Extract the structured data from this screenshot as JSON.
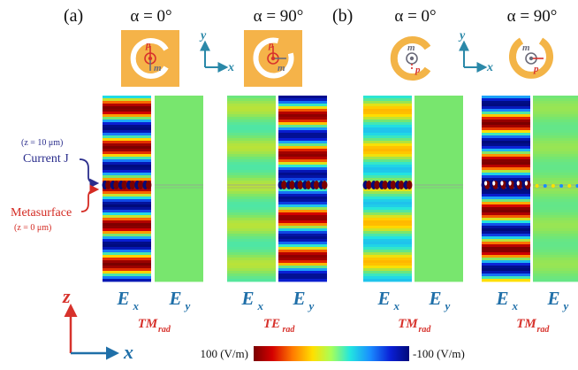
{
  "panels": [
    {
      "tag": "(a)",
      "columns": [
        {
          "alpha": "α = 0°",
          "unit": "c-open-right",
          "fields": [
            {
              "c": "E",
              "s": "x",
              "pat": "ex-a0"
            },
            {
              "c": "E",
              "s": "y",
              "pat": "flat-green"
            }
          ],
          "mode": {
            "m": "TM",
            "s": "rad"
          }
        },
        {
          "alpha": "α = 90°",
          "unit": "c-open-right-rot",
          "fields": [
            {
              "c": "E",
              "s": "x",
              "pat": "ex-a90"
            },
            {
              "c": "E",
              "s": "y",
              "pat": "ey-a90"
            }
          ],
          "mode": {
            "m": "TE",
            "s": "rad"
          }
        }
      ]
    },
    {
      "tag": "(b)",
      "columns": [
        {
          "alpha": "α = 0°",
          "unit": "ring-open-right",
          "fields": [
            {
              "c": "E",
              "s": "x",
              "pat": "ex-b0"
            },
            {
              "c": "E",
              "s": "y",
              "pat": "flat-green"
            }
          ],
          "mode": {
            "m": "TM",
            "s": "rad"
          }
        },
        {
          "alpha": "α = 90°",
          "unit": "ring-open-top",
          "fields": [
            {
              "c": "E",
              "s": "x",
              "pat": "ex-b90"
            },
            {
              "c": "E",
              "s": "y",
              "pat": "ey-b90"
            }
          ],
          "mode": {
            "m": "TM",
            "s": "rad"
          }
        }
      ]
    }
  ],
  "dipoles": {
    "p": "p",
    "m": "m"
  },
  "axes_small": {
    "x": "x",
    "y": "y"
  },
  "axes_big": {
    "x": "x",
    "z": "z"
  },
  "labels": {
    "current_height": "(z = 10 μm)",
    "current": "Current J",
    "metasurface": "Metasurface",
    "metasurface_height": "(z = 0 μm)"
  },
  "colorbar": {
    "max": "100 (V/m)",
    "min": "-100 (V/m)"
  },
  "colors": {
    "unit_gold": "#F3B447",
    "unit_square": "#F5B349",
    "label_blue": "#1F6FA8",
    "label_red": "#D7322C",
    "current_navy": "#2A2D8C",
    "metasurface_red": "#D42A22",
    "axis_teal": "#2A88A8",
    "dipole_red": "#D8322C",
    "dipole_gray": "#6B6B7A"
  }
}
